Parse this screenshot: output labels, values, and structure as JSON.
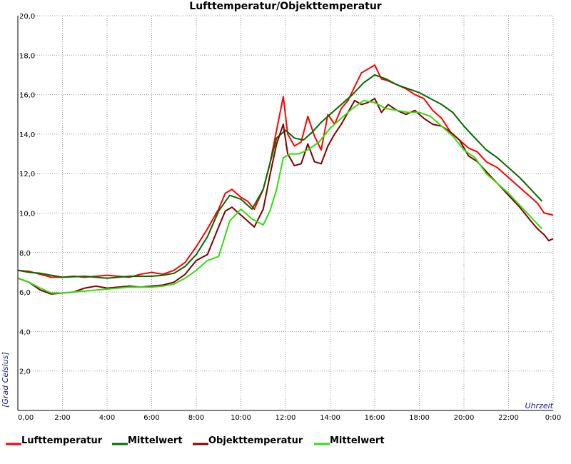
{
  "chart_data": {
    "type": "line",
    "title": "Lufttemperatur/Objekttemperatur",
    "xlabel": "Uhrzeit",
    "ylabel": "[Grad Celsius]",
    "xlim": [
      0,
      24
    ],
    "ylim": [
      0,
      20
    ],
    "x_ticks": [
      0,
      2,
      4,
      6,
      8,
      10,
      12,
      14,
      16,
      18,
      20,
      22,
      24
    ],
    "x_tick_labels": [
      "0,00",
      "2:00",
      "4:00",
      "6:00",
      "8:00",
      "10:00",
      "12:00",
      "14:00",
      "16:00",
      "18:00",
      "20:00",
      "22:00",
      "0:00"
    ],
    "y_ticks": [
      2,
      4,
      6,
      8,
      10,
      12,
      14,
      16,
      18,
      20
    ],
    "y_tick_labels": [
      "2,0",
      "4,0",
      "6,0",
      "8,0",
      "10,0",
      "12,0",
      "14,0",
      "16,0",
      "18,0",
      "20,0"
    ],
    "grid": true,
    "legend_position": "bottom",
    "series": [
      {
        "name": "Lufttemperatur",
        "color": "#ff0000",
        "x": [
          0,
          0.5,
          1,
          1.5,
          2,
          2.5,
          3,
          3.5,
          4,
          4.5,
          5,
          5.5,
          6,
          6.5,
          7,
          7.5,
          8,
          8.5,
          9,
          9.3,
          9.6,
          10,
          10.3,
          10.6,
          11,
          11.3,
          11.6,
          11.9,
          12.1,
          12.4,
          12.7,
          13,
          13.3,
          13.6,
          13.9,
          14.2,
          14.5,
          14.8,
          15.1,
          15.4,
          15.7,
          16,
          16.3,
          16.6,
          17,
          17.4,
          17.8,
          18.2,
          18.6,
          19,
          19.4,
          19.8,
          20.2,
          20.6,
          21,
          21.5,
          22,
          22.5,
          23,
          23.3,
          23.6,
          24
        ],
        "y": [
          7.1,
          7.05,
          6.9,
          6.75,
          6.75,
          6.8,
          6.75,
          6.8,
          6.85,
          6.8,
          6.75,
          6.9,
          7.0,
          6.9,
          7.1,
          7.5,
          8.3,
          9.2,
          10.2,
          11.0,
          11.2,
          10.8,
          10.6,
          10.2,
          11.2,
          12.5,
          14.2,
          15.9,
          14.0,
          13.4,
          13.6,
          14.9,
          13.9,
          13.2,
          15.0,
          14.5,
          15.3,
          15.7,
          16.4,
          17.1,
          17.3,
          17.5,
          16.8,
          16.7,
          16.5,
          16.3,
          16.0,
          15.8,
          15.2,
          14.8,
          14.1,
          13.7,
          13.3,
          13.1,
          12.6,
          12.3,
          11.8,
          11.3,
          10.8,
          10.5,
          10.0,
          9.9
        ]
      },
      {
        "name": "Mittelwert",
        "color": "#006b00",
        "x": [
          0,
          0.5,
          1,
          1.5,
          2,
          3,
          4,
          5,
          6,
          6.5,
          7,
          7.5,
          8,
          8.5,
          9,
          9.5,
          10,
          10.5,
          11,
          11.3,
          11.6,
          12,
          12.4,
          12.8,
          13.2,
          13.6,
          14,
          14.5,
          15,
          15.5,
          16,
          16.5,
          17,
          17.5,
          18,
          18.5,
          19,
          19.5,
          20,
          20.5,
          21,
          21.5,
          22,
          22.5,
          23,
          23.5
        ],
        "y": [
          7.1,
          7.0,
          6.95,
          6.85,
          6.75,
          6.8,
          6.7,
          6.8,
          6.8,
          6.85,
          6.95,
          7.3,
          7.9,
          8.8,
          10.1,
          10.9,
          10.7,
          10.2,
          11.2,
          12.5,
          13.8,
          14.2,
          13.8,
          13.7,
          14.1,
          14.6,
          15.0,
          15.5,
          16.0,
          16.6,
          17.0,
          16.8,
          16.5,
          16.3,
          16.1,
          15.8,
          15.5,
          15.1,
          14.4,
          13.8,
          13.2,
          12.8,
          12.3,
          11.8,
          11.2,
          10.6
        ]
      },
      {
        "name": "Objekttemperatur",
        "color": "#800000",
        "x": [
          0,
          0.5,
          1,
          1.5,
          2,
          2.5,
          3,
          3.5,
          4,
          4.5,
          5,
          5.5,
          6,
          6.5,
          7,
          7.5,
          8,
          8.5,
          9,
          9.3,
          9.6,
          10,
          10.3,
          10.6,
          11,
          11.3,
          11.6,
          11.9,
          12.1,
          12.4,
          12.7,
          13,
          13.3,
          13.6,
          13.9,
          14.2,
          14.5,
          14.8,
          15.1,
          15.4,
          15.7,
          16,
          16.3,
          16.6,
          17,
          17.4,
          17.8,
          18.2,
          18.6,
          19,
          19.4,
          19.8,
          20.2,
          20.6,
          21,
          21.5,
          22,
          22.5,
          23,
          23.3,
          23.6,
          23.8,
          24
        ],
        "y": [
          6.7,
          6.5,
          6.1,
          5.9,
          5.95,
          6.0,
          6.2,
          6.3,
          6.2,
          6.25,
          6.3,
          6.25,
          6.3,
          6.35,
          6.5,
          6.9,
          7.6,
          7.9,
          9.3,
          10.1,
          10.3,
          9.9,
          9.6,
          9.3,
          10.2,
          11.9,
          13.5,
          14.5,
          13.0,
          12.4,
          12.5,
          13.5,
          12.6,
          12.5,
          13.4,
          14.0,
          14.5,
          15.1,
          15.7,
          15.5,
          15.6,
          15.8,
          15.1,
          15.5,
          15.2,
          15.0,
          15.2,
          14.8,
          14.5,
          14.4,
          14.1,
          13.7,
          12.9,
          12.6,
          12.1,
          11.5,
          10.9,
          10.3,
          9.6,
          9.2,
          8.9,
          8.6,
          8.7
        ]
      },
      {
        "name": "Mittelwert",
        "color": "#33dd11",
        "x": [
          0,
          0.5,
          1,
          1.5,
          2,
          3,
          4,
          5,
          6,
          6.5,
          7,
          7.5,
          8,
          8.5,
          9,
          9.5,
          10,
          10.5,
          11,
          11.3,
          11.6,
          11.9,
          12.2,
          12.6,
          13,
          13.5,
          14,
          14.5,
          15,
          15.5,
          16,
          16.5,
          17,
          17.5,
          18,
          18.5,
          19,
          19.5,
          20,
          20.5,
          21,
          21.5,
          22,
          22.5,
          23,
          23.5
        ],
        "y": [
          6.7,
          6.5,
          6.2,
          5.95,
          5.95,
          6.05,
          6.15,
          6.25,
          6.25,
          6.3,
          6.4,
          6.7,
          7.1,
          7.6,
          7.8,
          9.6,
          10.2,
          9.7,
          9.4,
          10.1,
          11.2,
          12.8,
          13.0,
          13.0,
          13.2,
          13.6,
          14.3,
          14.8,
          15.3,
          15.7,
          15.6,
          15.3,
          15.2,
          15.1,
          15.1,
          14.9,
          14.4,
          13.9,
          13.2,
          12.8,
          12.0,
          11.5,
          11.0,
          10.4,
          9.8,
          9.2
        ]
      }
    ]
  }
}
